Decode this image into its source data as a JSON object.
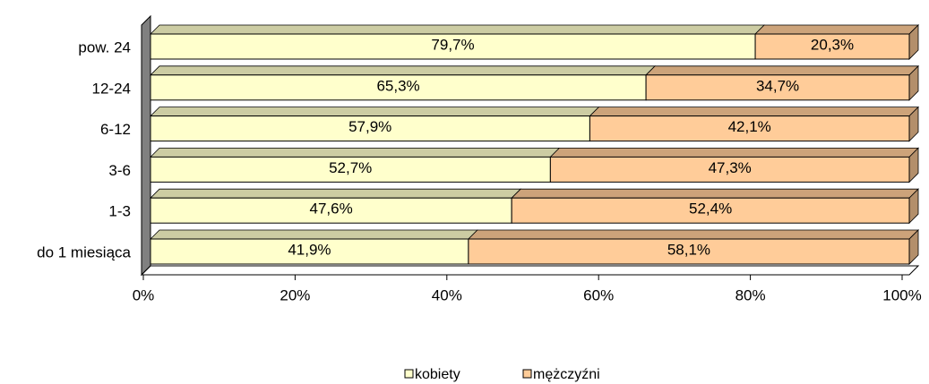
{
  "chart_data": {
    "type": "bar",
    "orientation": "horizontal",
    "stacked": true,
    "categories": [
      "pow. 24",
      "12-24",
      "6-12",
      "3-6",
      "1-3",
      "do 1 miesiąca"
    ],
    "series": [
      {
        "name": "kobiety",
        "color": "#ffffcc",
        "values": [
          79.7,
          65.3,
          57.9,
          52.7,
          47.6,
          41.9
        ],
        "value_labels": [
          "79,7%",
          "65,3%",
          "57,9%",
          "52,7%",
          "47,6%",
          "41,9%"
        ]
      },
      {
        "name": "mężczyźni",
        "color": "#ffcc99",
        "values": [
          20.3,
          34.7,
          42.1,
          47.3,
          52.4,
          58.1
        ],
        "value_labels": [
          "20,3%",
          "34,7%",
          "42,1%",
          "47,3%",
          "52,4%",
          "58,1%"
        ]
      }
    ],
    "xlim": [
      0,
      100
    ],
    "xticks": [
      {
        "value": 0,
        "label": "0%"
      },
      {
        "value": 20,
        "label": "20%"
      },
      {
        "value": 40,
        "label": "40%"
      },
      {
        "value": 60,
        "label": "60%"
      },
      {
        "value": 80,
        "label": "80%"
      },
      {
        "value": 100,
        "label": "100%"
      }
    ],
    "legend": "bottom"
  }
}
